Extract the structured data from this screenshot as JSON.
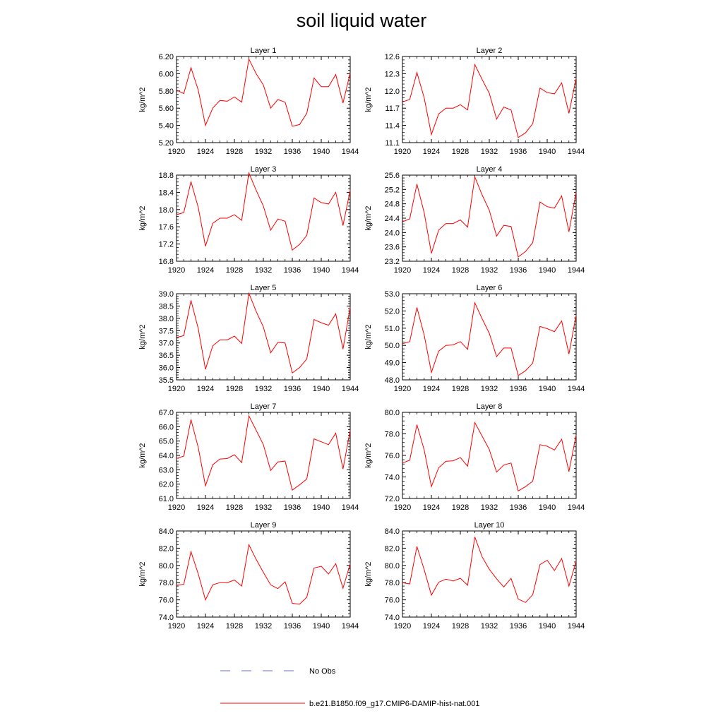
{
  "title": "soil liquid water",
  "legend": [
    {
      "label": "No Obs",
      "color": "#6a6adc",
      "style": "dashed"
    },
    {
      "label": "b.e21.B1850.f09_g17.CMIP6-DAMIP-hist-nat.001",
      "color": "#ff0000",
      "style": "solid"
    }
  ],
  "chart_data": [
    {
      "type": "line",
      "title": "Layer 1",
      "ylabel": "kg/m^2",
      "x": [
        1920,
        1921,
        1922,
        1923,
        1924,
        1925,
        1926,
        1927,
        1928,
        1929,
        1930,
        1931,
        1932,
        1933,
        1934,
        1935,
        1936,
        1937,
        1938,
        1939,
        1940,
        1941,
        1942,
        1943,
        1944
      ],
      "xlim": [
        1920,
        1944
      ],
      "xticks": [
        1920,
        1924,
        1928,
        1932,
        1936,
        1940,
        1944
      ],
      "ylim": [
        5.2,
        6.2
      ],
      "yticks": [
        "5.20",
        "5.40",
        "5.60",
        "5.80",
        "6.00",
        "6.20"
      ],
      "series": [
        {
          "name": "b.e21.B1850.f09_g17.CMIP6-DAMIP-hist-nat.001",
          "values": [
            5.81,
            5.77,
            6.07,
            5.81,
            5.4,
            5.6,
            5.69,
            5.68,
            5.73,
            5.67,
            6.17,
            6.0,
            5.87,
            5.6,
            5.7,
            5.67,
            5.39,
            5.41,
            5.54,
            5.95,
            5.85,
            5.85,
            5.99,
            5.66,
            6.01
          ]
        }
      ]
    },
    {
      "type": "line",
      "title": "Layer 2",
      "ylabel": "kg/m^2",
      "x": [
        1920,
        1921,
        1922,
        1923,
        1924,
        1925,
        1926,
        1927,
        1928,
        1929,
        1930,
        1931,
        1932,
        1933,
        1934,
        1935,
        1936,
        1937,
        1938,
        1939,
        1940,
        1941,
        1942,
        1943,
        1944
      ],
      "xlim": [
        1920,
        1944
      ],
      "xticks": [
        1920,
        1924,
        1928,
        1932,
        1936,
        1940,
        1944
      ],
      "ylim": [
        11.1,
        12.6
      ],
      "yticks": [
        "11.1",
        "11.4",
        "11.7",
        "12.0",
        "12.3",
        "12.6"
      ],
      "series": [
        {
          "name": "b.e21.B1850.f09_g17.CMIP6-DAMIP-hist-nat.001",
          "values": [
            11.81,
            11.85,
            12.32,
            11.88,
            11.24,
            11.6,
            11.7,
            11.7,
            11.76,
            11.67,
            12.46,
            12.2,
            11.96,
            11.51,
            11.72,
            11.67,
            11.19,
            11.27,
            11.43,
            12.05,
            11.97,
            11.95,
            12.14,
            11.61,
            12.22
          ]
        }
      ]
    },
    {
      "type": "line",
      "title": "Layer 3",
      "ylabel": "kg/m^2",
      "x": [
        1920,
        1921,
        1922,
        1923,
        1924,
        1925,
        1926,
        1927,
        1928,
        1929,
        1930,
        1931,
        1932,
        1933,
        1934,
        1935,
        1936,
        1937,
        1938,
        1939,
        1940,
        1941,
        1942,
        1943,
        1944
      ],
      "xlim": [
        1920,
        1944
      ],
      "xticks": [
        1920,
        1924,
        1928,
        1932,
        1936,
        1940,
        1944
      ],
      "ylim": [
        16.8,
        18.8
      ],
      "yticks": [
        "16.8",
        "17.2",
        "17.6",
        "18.0",
        "18.4",
        "18.8"
      ],
      "series": [
        {
          "name": "b.e21.B1850.f09_g17.CMIP6-DAMIP-hist-nat.001",
          "values": [
            17.88,
            17.93,
            18.65,
            18.05,
            17.15,
            17.68,
            17.8,
            17.8,
            17.88,
            17.75,
            18.85,
            18.45,
            18.08,
            17.52,
            17.78,
            17.73,
            17.06,
            17.19,
            17.4,
            18.27,
            18.16,
            18.13,
            18.4,
            17.63,
            18.45
          ]
        }
      ]
    },
    {
      "type": "line",
      "title": "Layer 4",
      "ylabel": "kg/m^2",
      "x": [
        1920,
        1921,
        1922,
        1923,
        1924,
        1925,
        1926,
        1927,
        1928,
        1929,
        1930,
        1931,
        1932,
        1933,
        1934,
        1935,
        1936,
        1937,
        1938,
        1939,
        1940,
        1941,
        1942,
        1943,
        1944
      ],
      "xlim": [
        1920,
        1944
      ],
      "xticks": [
        1920,
        1924,
        1928,
        1932,
        1936,
        1940,
        1944
      ],
      "ylim": [
        23.2,
        25.6
      ],
      "yticks": [
        "23.2",
        "23.6",
        "24.0",
        "24.4",
        "24.8",
        "25.2",
        "25.6"
      ],
      "series": [
        {
          "name": "b.e21.B1850.f09_g17.CMIP6-DAMIP-hist-nat.001",
          "values": [
            24.3,
            24.38,
            25.35,
            24.55,
            23.42,
            24.07,
            24.25,
            24.25,
            24.35,
            24.15,
            25.55,
            25.05,
            24.62,
            23.9,
            24.2,
            24.17,
            23.32,
            23.47,
            23.72,
            24.85,
            24.72,
            24.68,
            25.02,
            24.02,
            25.12
          ]
        }
      ]
    },
    {
      "type": "line",
      "title": "Layer 5",
      "ylabel": "kg/m^2",
      "x": [
        1920,
        1921,
        1922,
        1923,
        1924,
        1925,
        1926,
        1927,
        1928,
        1929,
        1930,
        1931,
        1932,
        1933,
        1934,
        1935,
        1936,
        1937,
        1938,
        1939,
        1940,
        1941,
        1942,
        1943,
        1944
      ],
      "xlim": [
        1920,
        1944
      ],
      "xticks": [
        1920,
        1924,
        1928,
        1932,
        1936,
        1940,
        1944
      ],
      "ylim": [
        35.5,
        39.0
      ],
      "yticks": [
        "35.5",
        "36.0",
        "36.5",
        "37.0",
        "37.5",
        "38.0",
        "38.5",
        "39.0"
      ],
      "series": [
        {
          "name": "b.e21.B1850.f09_g17.CMIP6-DAMIP-hist-nat.001",
          "values": [
            37.22,
            37.3,
            38.73,
            37.58,
            35.93,
            36.88,
            37.12,
            37.12,
            37.28,
            36.98,
            39.02,
            38.28,
            37.65,
            36.6,
            37.02,
            37.0,
            35.78,
            36.0,
            36.35,
            37.95,
            37.82,
            37.72,
            38.18,
            36.75,
            38.45
          ]
        }
      ]
    },
    {
      "type": "line",
      "title": "Layer 6",
      "ylabel": "kg/m^2",
      "x": [
        1920,
        1921,
        1922,
        1923,
        1924,
        1925,
        1926,
        1927,
        1928,
        1929,
        1930,
        1931,
        1932,
        1933,
        1934,
        1935,
        1936,
        1937,
        1938,
        1939,
        1940,
        1941,
        1942,
        1943,
        1944
      ],
      "xlim": [
        1920,
        1944
      ],
      "xticks": [
        1920,
        1924,
        1928,
        1932,
        1936,
        1940,
        1944
      ],
      "ylim": [
        48.0,
        53.0
      ],
      "yticks": [
        "48.0",
        "49.0",
        "50.0",
        "51.0",
        "52.0",
        "53.0"
      ],
      "series": [
        {
          "name": "b.e21.B1850.f09_g17.CMIP6-DAMIP-hist-nat.001",
          "values": [
            50.1,
            50.22,
            52.2,
            50.6,
            48.43,
            49.67,
            50.0,
            50.03,
            50.22,
            49.77,
            52.47,
            51.55,
            50.7,
            49.35,
            49.85,
            49.85,
            48.25,
            48.53,
            48.97,
            51.1,
            50.97,
            50.8,
            51.42,
            49.5,
            51.75
          ]
        }
      ]
    },
    {
      "type": "line",
      "title": "Layer 7",
      "ylabel": "kg/m^2",
      "x": [
        1920,
        1921,
        1922,
        1923,
        1924,
        1925,
        1926,
        1927,
        1928,
        1929,
        1930,
        1931,
        1932,
        1933,
        1934,
        1935,
        1936,
        1937,
        1938,
        1939,
        1940,
        1941,
        1942,
        1943,
        1944
      ],
      "xlim": [
        1920,
        1944
      ],
      "xticks": [
        1920,
        1924,
        1928,
        1932,
        1936,
        1940,
        1944
      ],
      "ylim": [
        61.0,
        67.0
      ],
      "yticks": [
        "61.0",
        "62.0",
        "63.0",
        "64.0",
        "65.0",
        "66.0",
        "67.0"
      ],
      "series": [
        {
          "name": "b.e21.B1850.f09_g17.CMIP6-DAMIP-hist-nat.001",
          "values": [
            63.78,
            63.95,
            66.5,
            64.55,
            61.88,
            63.35,
            63.75,
            63.78,
            64.05,
            63.5,
            66.75,
            65.75,
            64.75,
            62.95,
            63.55,
            63.6,
            61.58,
            61.95,
            62.35,
            65.15,
            64.95,
            64.75,
            65.55,
            63.05,
            65.75
          ]
        }
      ]
    },
    {
      "type": "line",
      "title": "Layer 8",
      "ylabel": "kg/m^2",
      "x": [
        1920,
        1921,
        1922,
        1923,
        1924,
        1925,
        1926,
        1927,
        1928,
        1929,
        1930,
        1931,
        1932,
        1933,
        1934,
        1935,
        1936,
        1937,
        1938,
        1939,
        1940,
        1941,
        1942,
        1943,
        1944
      ],
      "xlim": [
        1920,
        1944
      ],
      "xticks": [
        1920,
        1924,
        1928,
        1932,
        1936,
        1940,
        1944
      ],
      "ylim": [
        72.0,
        80.0
      ],
      "yticks": [
        "72.0",
        "74.0",
        "76.0",
        "78.0",
        "80.0"
      ],
      "series": [
        {
          "name": "b.e21.B1850.f09_g17.CMIP6-DAMIP-hist-nat.001",
          "values": [
            75.3,
            75.55,
            78.85,
            76.5,
            73.1,
            74.85,
            75.45,
            75.5,
            75.8,
            75.0,
            79.05,
            77.8,
            76.55,
            74.45,
            75.1,
            75.3,
            72.7,
            73.1,
            73.6,
            77.0,
            76.85,
            76.5,
            77.5,
            74.5,
            77.9
          ]
        }
      ]
    },
    {
      "type": "line",
      "title": "Layer 9",
      "ylabel": "kg/m^2",
      "x": [
        1920,
        1921,
        1922,
        1923,
        1924,
        1925,
        1926,
        1927,
        1928,
        1929,
        1930,
        1931,
        1932,
        1933,
        1934,
        1935,
        1936,
        1937,
        1938,
        1939,
        1940,
        1941,
        1942,
        1943,
        1944
      ],
      "xlim": [
        1920,
        1944
      ],
      "xticks": [
        1920,
        1924,
        1928,
        1932,
        1936,
        1940,
        1944
      ],
      "ylim": [
        74.0,
        84.0
      ],
      "yticks": [
        "74.0",
        "76.0",
        "78.0",
        "80.0",
        "82.0",
        "84.0"
      ],
      "series": [
        {
          "name": "b.e21.B1850.f09_g17.CMIP6-DAMIP-hist-nat.001",
          "values": [
            77.7,
            77.8,
            81.6,
            79.0,
            76.0,
            77.75,
            78.0,
            78.0,
            78.3,
            77.6,
            82.4,
            80.7,
            79.2,
            77.75,
            77.3,
            78.1,
            75.6,
            75.5,
            76.3,
            79.7,
            79.9,
            79.0,
            80.2,
            77.35,
            80.2
          ]
        }
      ]
    },
    {
      "type": "line",
      "title": "Layer 10",
      "ylabel": "kg/m^2",
      "x": [
        1920,
        1921,
        1922,
        1923,
        1924,
        1925,
        1926,
        1927,
        1928,
        1929,
        1930,
        1931,
        1932,
        1933,
        1934,
        1935,
        1936,
        1937,
        1938,
        1939,
        1940,
        1941,
        1942,
        1943,
        1944
      ],
      "xlim": [
        1920,
        1944
      ],
      "xticks": [
        1920,
        1924,
        1928,
        1932,
        1936,
        1940,
        1944
      ],
      "ylim": [
        74.0,
        84.0
      ],
      "yticks": [
        "74.0",
        "76.0",
        "78.0",
        "80.0",
        "82.0",
        "84.0"
      ],
      "series": [
        {
          "name": "b.e21.B1850.f09_g17.CMIP6-DAMIP-hist-nat.001",
          "values": [
            78.0,
            77.85,
            82.2,
            79.5,
            76.55,
            78.05,
            78.4,
            78.2,
            78.5,
            77.7,
            83.3,
            81.0,
            79.55,
            78.45,
            77.5,
            78.5,
            76.1,
            75.7,
            76.6,
            80.1,
            80.6,
            79.4,
            80.8,
            77.6,
            80.5
          ]
        }
      ]
    }
  ]
}
